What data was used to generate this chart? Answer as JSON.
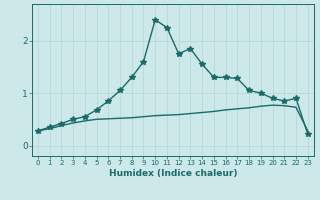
{
  "xlabel": "Humidex (Indice chaleur)",
  "ylabel": "",
  "bg_color": "#cce8e8",
  "line_color": "#1a6b6b",
  "grid_color": "#b8d8d8",
  "x_ticks": [
    0,
    1,
    2,
    3,
    4,
    5,
    6,
    7,
    8,
    9,
    10,
    11,
    12,
    13,
    14,
    15,
    16,
    17,
    18,
    19,
    20,
    21,
    22,
    23
  ],
  "ylim": [
    -0.2,
    2.7
  ],
  "xlim": [
    -0.5,
    23.5
  ],
  "curve1_x": [
    0,
    1,
    2,
    3,
    4,
    5,
    6,
    7,
    8,
    9,
    10,
    11,
    12,
    13,
    14,
    15,
    16,
    17,
    18,
    19,
    20,
    21,
    22,
    23
  ],
  "curve1_y": [
    0.28,
    0.35,
    0.42,
    0.5,
    0.55,
    0.68,
    0.85,
    1.05,
    1.3,
    1.6,
    2.4,
    2.25,
    1.75,
    1.85,
    1.55,
    1.3,
    1.3,
    1.28,
    1.05,
    1.0,
    0.9,
    0.85,
    0.9,
    0.22
  ],
  "curve2_x": [
    0,
    1,
    2,
    3,
    4,
    5,
    6,
    7,
    8,
    9,
    10,
    11,
    12,
    13,
    14,
    15,
    16,
    17,
    18,
    19,
    20,
    21,
    22,
    23
  ],
  "curve2_y": [
    0.28,
    0.32,
    0.38,
    0.43,
    0.47,
    0.5,
    0.51,
    0.52,
    0.53,
    0.55,
    0.57,
    0.58,
    0.59,
    0.61,
    0.63,
    0.65,
    0.68,
    0.7,
    0.72,
    0.75,
    0.77,
    0.76,
    0.73,
    0.28
  ],
  "ytick_vals": [
    0,
    1,
    2
  ],
  "marker": "*",
  "marker_size": 4.0,
  "linewidth": 1.0
}
